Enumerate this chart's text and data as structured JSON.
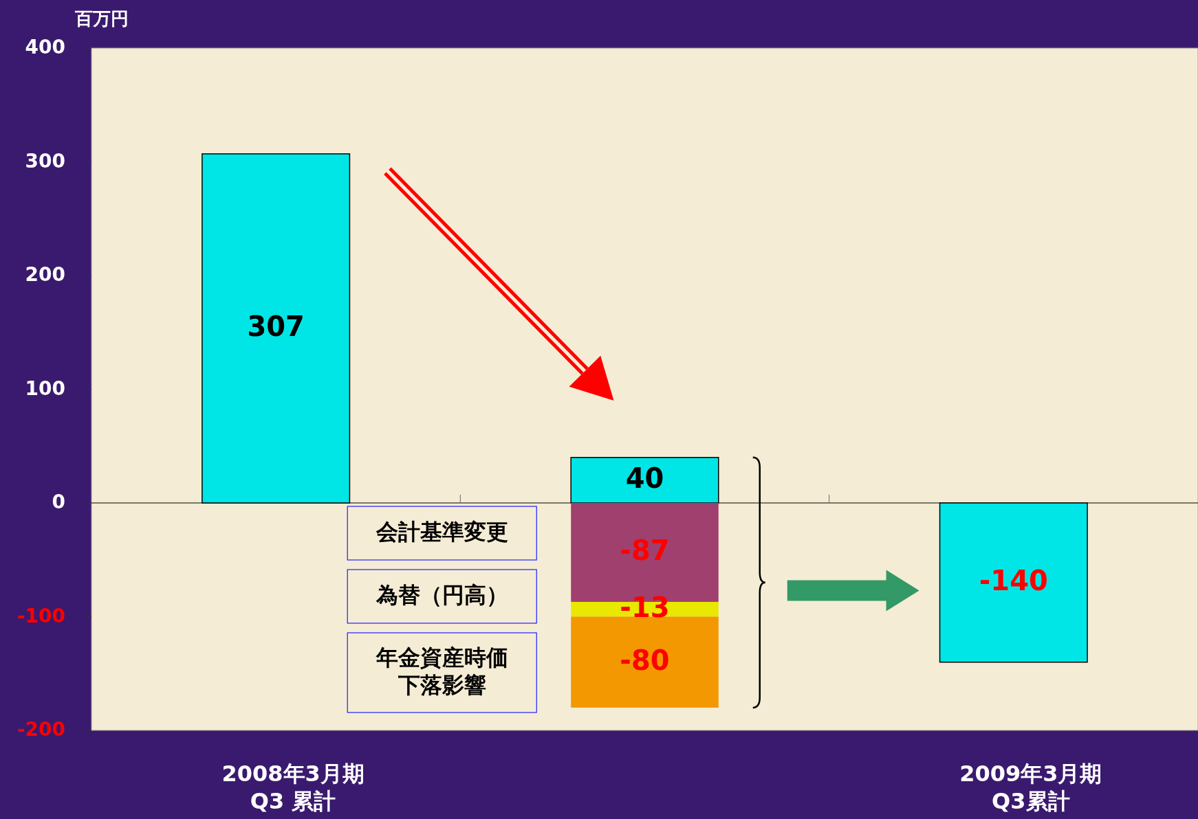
{
  "chart_data": {
    "type": "bar",
    "stacked": true,
    "ylabel": "百万円",
    "categories": [
      "2008年3月期\nQ3 累計",
      null,
      "2009年3月期\nQ3累計"
    ],
    "series": [
      {
        "color": "#00e6e6",
        "values": [
          307,
          40,
          -140
        ]
      },
      {
        "color": "#a0406e",
        "values": [
          null,
          -87,
          null
        ]
      },
      {
        "color": "#e8e800",
        "values": [
          null,
          -13,
          null
        ]
      },
      {
        "color": "#f39800",
        "values": [
          null,
          -80,
          null
        ]
      }
    ],
    "ylim": [
      -200,
      400
    ],
    "yticks": [
      -200,
      -100,
      0,
      100,
      200,
      300,
      400
    ],
    "data_labels": true,
    "annotations": [
      "会計基準変更",
      "為替（円高）",
      "年金資産時価下落影響"
    ]
  }
}
